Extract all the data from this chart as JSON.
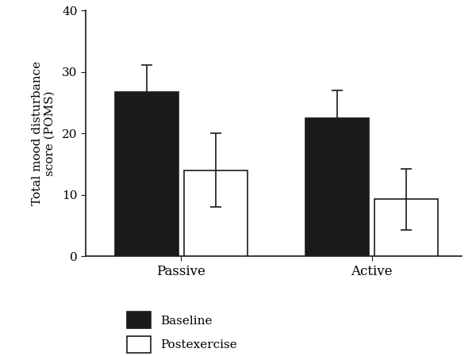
{
  "groups": [
    "Passive",
    "Active"
  ],
  "conditions": [
    "Baseline",
    "Postexercise"
  ],
  "values": {
    "Passive": {
      "Baseline": 26.7,
      "Postexercise": 14.0
    },
    "Active": {
      "Baseline": 22.5,
      "Postexercise": 9.3
    }
  },
  "errors": {
    "Passive": {
      "Baseline": 4.5,
      "Postexercise": 6.0
    },
    "Active": {
      "Baseline": 4.5,
      "Postexercise": 5.0
    }
  },
  "bar_colors": {
    "Baseline": "#1a1a1a",
    "Postexercise": "#ffffff"
  },
  "bar_edgecolor": "#1a1a1a",
  "ylabel": "Total mood disturbance\nscore (POMS)",
  "ylim": [
    0,
    40
  ],
  "yticks": [
    0,
    10,
    20,
    30,
    40
  ],
  "bar_width": 0.6,
  "bar_gap": 0.65,
  "group_centers": [
    1.2,
    3.0
  ],
  "xlim": [
    0.3,
    3.85
  ],
  "significance_marker": "*",
  "legend_labels": [
    "Baseline",
    "Postexercise"
  ],
  "background_color": "#ffffff",
  "axis_color": "#1a1a1a",
  "figsize": [
    6.0,
    4.49
  ],
  "dpi": 100
}
